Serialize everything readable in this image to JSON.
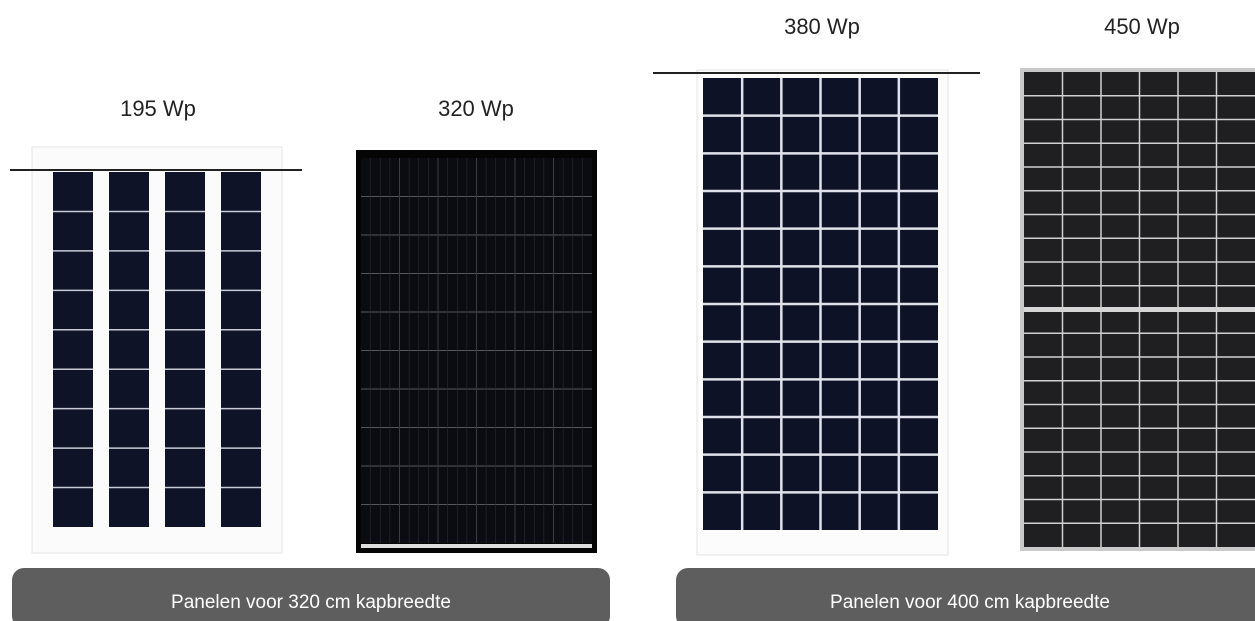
{
  "panels": [
    {
      "label": "195 Wp"
    },
    {
      "label": "320 Wp"
    },
    {
      "label": "380 Wp"
    },
    {
      "label": "450 Wp"
    }
  ],
  "groups": [
    {
      "label": "Panelen voor 320 cm kapbreedte"
    },
    {
      "label": "Panelen voor 400 cm kapbreedte"
    }
  ]
}
